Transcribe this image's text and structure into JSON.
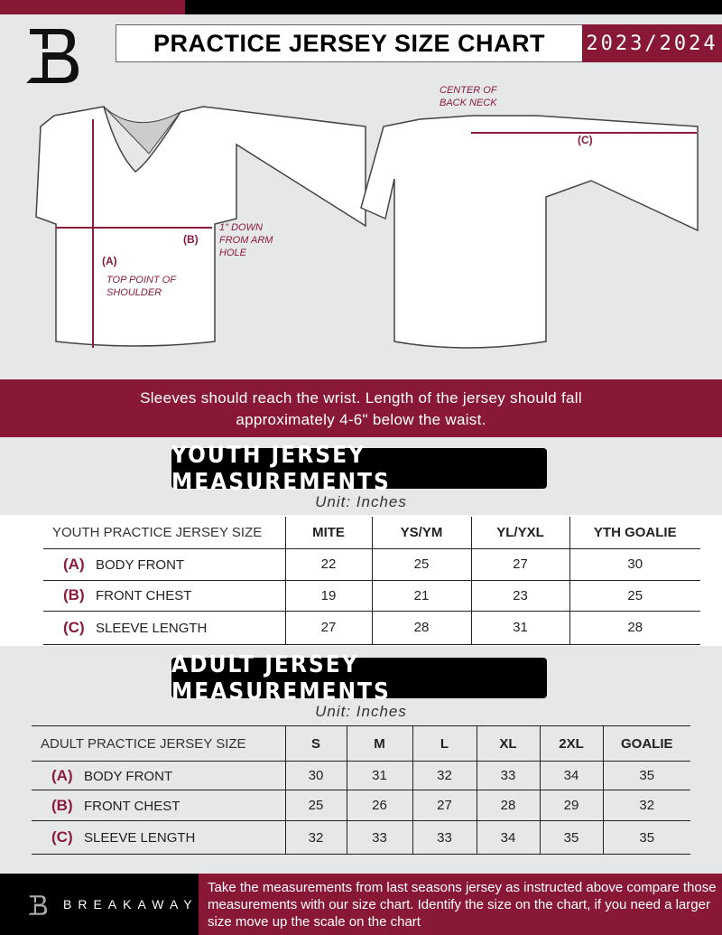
{
  "header": {
    "title": "PRACTICE JERSEY SIZE CHART",
    "season": "2023/2024",
    "accent": "#891837"
  },
  "diagram": {
    "center_back_neck": "CENTER OF BACK NECK",
    "label_a": "(A)",
    "label_b": "(B)",
    "label_c": "(C)",
    "down_from_arm_hole": "1\" DOWN FROM ARM HOLE",
    "top_point": "TOP POINT OF SHOULDER"
  },
  "banner": {
    "line1": "Sleeves should reach the wrist. Length of the jersey should fall",
    "line2": "approximately 4-6\" below the waist."
  },
  "youth": {
    "title": "YOUTH JERSEY MEASUREMENTS",
    "unit": "Unit: Inches",
    "columns": [
      "YOUTH PRACTICE JERSEY SIZE",
      "MITE",
      "YS/YM",
      "YL/YXL",
      "YTH GOALIE"
    ],
    "rows": [
      {
        "letter": "(A)",
        "label": "BODY FRONT",
        "values": [
          "22",
          "25",
          "27",
          "30"
        ]
      },
      {
        "letter": "(B)",
        "label": "FRONT CHEST",
        "values": [
          "19",
          "21",
          "23",
          "25"
        ]
      },
      {
        "letter": "(C)",
        "label": "SLEEVE LENGTH",
        "values": [
          "27",
          "28",
          "31",
          "28"
        ]
      }
    ]
  },
  "adult": {
    "title": "ADULT JERSEY MEASUREMENTS",
    "unit": "Unit: Inches",
    "columns": [
      "ADULT PRACTICE JERSEY SIZE",
      "S",
      "M",
      "L",
      "XL",
      "2XL",
      "GOALIE"
    ],
    "rows": [
      {
        "letter": "(A)",
        "label": "BODY FRONT",
        "values": [
          "30",
          "31",
          "32",
          "33",
          "34",
          "35"
        ]
      },
      {
        "letter": "(B)",
        "label": "FRONT CHEST",
        "values": [
          "25",
          "26",
          "27",
          "28",
          "29",
          "32"
        ]
      },
      {
        "letter": "(C)",
        "label": "SLEEVE LENGTH",
        "values": [
          "32",
          "33",
          "33",
          "34",
          "35",
          "35"
        ]
      }
    ]
  },
  "footer": {
    "brand": "BREAKAWAY",
    "text": "Take the measurements from last seasons jersey as instructed above compare those measurements  with our size chart. Identify the size on the chart, if you need a larger size move up the scale on the chart"
  }
}
